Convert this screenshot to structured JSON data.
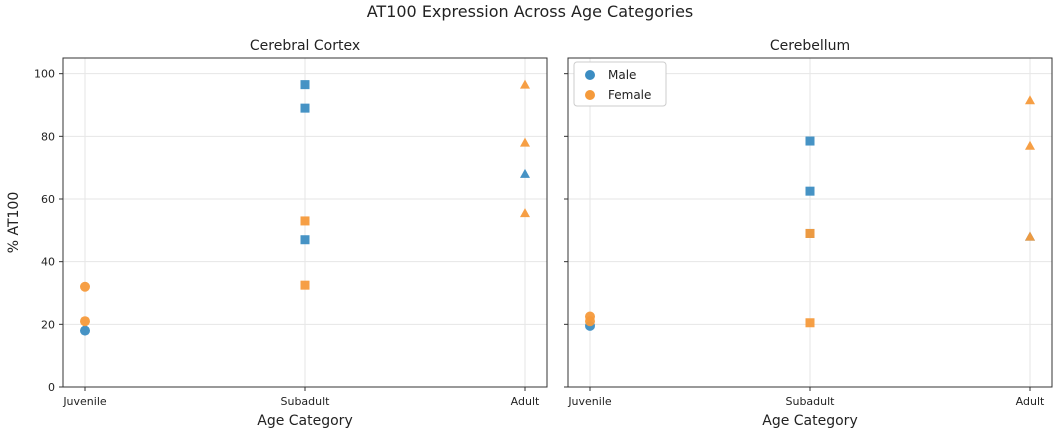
{
  "figure": {
    "suptitle": "AT100 Expression Across Age Categories"
  },
  "colors": {
    "male": "#3c8dc2",
    "female": "#f59a3b",
    "overlap": "#c9813c"
  },
  "chart_data": [
    {
      "type": "scatter",
      "title": "Cerebral Cortex",
      "xlabel": "Age Category",
      "ylabel": "% AT100",
      "categories": [
        "Juvenile",
        "Subadult",
        "Adult"
      ],
      "ylim": [
        0,
        105
      ],
      "yticks": [
        0,
        20,
        40,
        60,
        80,
        100
      ],
      "grid": true,
      "legend": null,
      "series": [
        {
          "name": "Male",
          "points": [
            {
              "x": "Juvenile",
              "y": 18,
              "marker": "circle"
            },
            {
              "x": "Subadult",
              "y": 96.5,
              "marker": "square"
            },
            {
              "x": "Subadult",
              "y": 89,
              "marker": "square"
            },
            {
              "x": "Subadult",
              "y": 47,
              "marker": "square"
            },
            {
              "x": "Adult",
              "y": 68,
              "marker": "triangle"
            }
          ]
        },
        {
          "name": "Female",
          "points": [
            {
              "x": "Juvenile",
              "y": 32,
              "marker": "circle"
            },
            {
              "x": "Juvenile",
              "y": 21,
              "marker": "circle"
            },
            {
              "x": "Subadult",
              "y": 53,
              "marker": "square"
            },
            {
              "x": "Subadult",
              "y": 32.5,
              "marker": "square"
            },
            {
              "x": "Adult",
              "y": 96.5,
              "marker": "triangle"
            },
            {
              "x": "Adult",
              "y": 78,
              "marker": "triangle"
            },
            {
              "x": "Adult",
              "y": 55.5,
              "marker": "triangle"
            }
          ]
        }
      ]
    },
    {
      "type": "scatter",
      "title": "Cerebellum",
      "xlabel": "Age Category",
      "ylabel": "",
      "categories": [
        "Juvenile",
        "Subadult",
        "Adult"
      ],
      "ylim": [
        0,
        105
      ],
      "yticks": [
        0,
        20,
        40,
        60,
        80,
        100
      ],
      "grid": true,
      "legend": {
        "position": "top-left",
        "entries": [
          "Male",
          "Female"
        ]
      },
      "series": [
        {
          "name": "Male",
          "points": [
            {
              "x": "Juvenile",
              "y": 19.5,
              "marker": "circle"
            },
            {
              "x": "Subadult",
              "y": 78.5,
              "marker": "square"
            },
            {
              "x": "Subadult",
              "y": 62.5,
              "marker": "square"
            },
            {
              "x": "Subadult",
              "y": 49,
              "marker": "square"
            },
            {
              "x": "Adult",
              "y": 48,
              "marker": "triangle"
            }
          ]
        },
        {
          "name": "Female",
          "points": [
            {
              "x": "Juvenile",
              "y": 22.5,
              "marker": "circle"
            },
            {
              "x": "Juvenile",
              "y": 21,
              "marker": "circle"
            },
            {
              "x": "Subadult",
              "y": 49,
              "marker": "square"
            },
            {
              "x": "Subadult",
              "y": 20.5,
              "marker": "square"
            },
            {
              "x": "Adult",
              "y": 91.5,
              "marker": "triangle"
            },
            {
              "x": "Adult",
              "y": 77,
              "marker": "triangle"
            },
            {
              "x": "Adult",
              "y": 48,
              "marker": "triangle"
            }
          ]
        }
      ]
    }
  ]
}
